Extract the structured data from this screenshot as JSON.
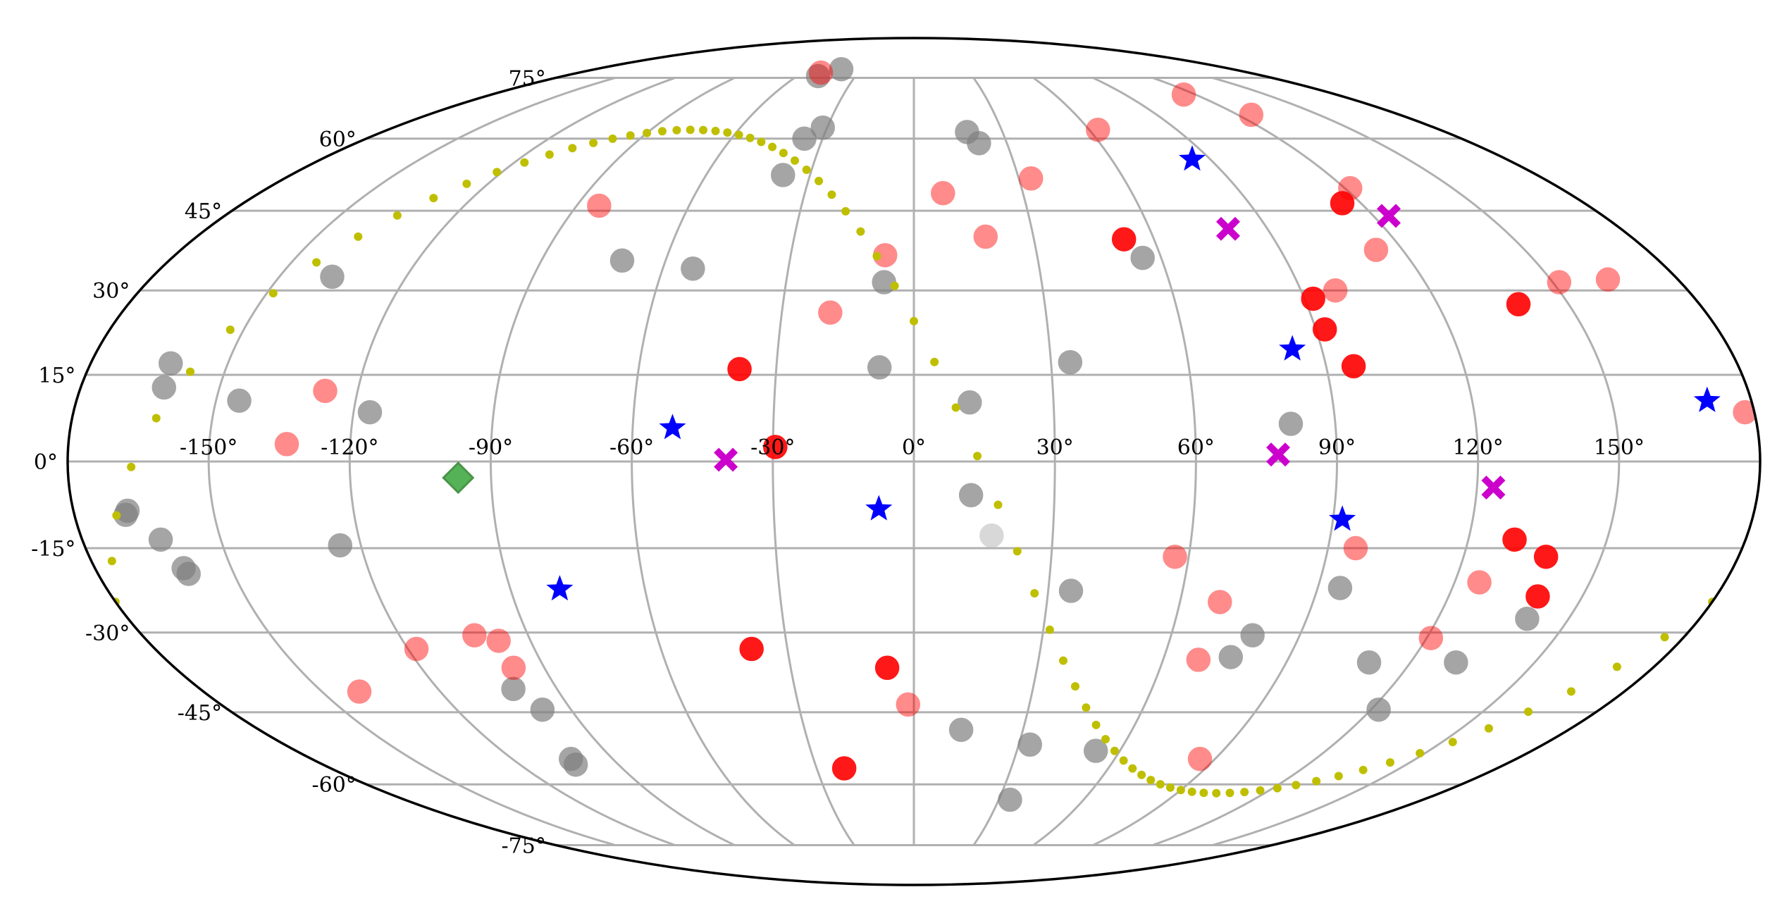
{
  "chart_data": {
    "type": "scatter",
    "projection": "mollweide",
    "title": "",
    "xlabel": "",
    "ylabel": "",
    "xlim": [
      -180,
      180
    ],
    "ylim": [
      -90,
      90
    ],
    "grid": true,
    "lon_ticks": [
      -150,
      -120,
      -90,
      -60,
      -30,
      0,
      30,
      60,
      90,
      120,
      150
    ],
    "lat_ticks": [
      -75,
      -60,
      -45,
      -30,
      -15,
      0,
      15,
      30,
      45,
      60,
      75
    ],
    "lon_tick_labels": [
      "-150°",
      "-120°",
      "-90°",
      "-60°",
      "-30°",
      "0°",
      "30°",
      "60°",
      "90°",
      "120°",
      "150°"
    ],
    "lat_tick_labels": [
      "-75°",
      "-60°",
      "-45°",
      "-30°",
      "-15°",
      "0°",
      "15°",
      "30°",
      "45°",
      "60°",
      "75°"
    ],
    "colors": {
      "grid": "#b0b0b0",
      "outline": "#000000",
      "gray": "#808080",
      "gray_light": "#c8c8c8",
      "red": "#ff0000",
      "blue": "#0000ff",
      "magenta": "#cc00cc",
      "green": "#2ca02c",
      "olive": "#bfbf00"
    },
    "series": [
      {
        "marker": "circle",
        "color": "#808080",
        "alpha": 0.7,
        "points": [
          [
            -168.4,
            -8.5
          ],
          [
            -163,
            -13.5
          ],
          [
            -160.5,
            -18.5
          ],
          [
            -160,
            -19.5
          ],
          [
            -162,
            12.8
          ],
          [
            -162.5,
            17
          ],
          [
            -145,
            10.5
          ],
          [
            -137.5,
            32.5
          ],
          [
            -124.5,
            -14.5
          ],
          [
            -116.5,
            8.5
          ],
          [
            -101,
            -40.5
          ],
          [
            -97.5,
            -44.5
          ],
          [
            -102.5,
            -54.5
          ],
          [
            -103,
            -55.7
          ],
          [
            -70.5,
            35.5
          ],
          [
            -52.8,
            34
          ],
          [
            -49.2,
            75.5
          ],
          [
            -36,
            60
          ],
          [
            -31.5,
            62.5
          ],
          [
            -41,
            77.5
          ],
          [
            -37.8,
            52.2
          ],
          [
            -7,
            31.5
          ],
          [
            -7.5,
            16.3
          ],
          [
            12,
            10.2
          ],
          [
            12.2,
            -5.8
          ],
          [
            13,
            -48.5
          ],
          [
            18,
            61.5
          ],
          [
            21,
            59
          ],
          [
            34.2,
            17.2
          ],
          [
            35.1,
            -22.5
          ],
          [
            33.2,
            -51.5
          ],
          [
            34,
            -63.5
          ],
          [
            55.5,
            36
          ],
          [
            53,
            -52.8
          ],
          [
            80.5,
            6.5
          ],
          [
            79,
            -30.5
          ],
          [
            76,
            -34.5
          ],
          [
            95,
            -22
          ],
          [
            110,
            -35.5
          ],
          [
            122,
            -44.5
          ],
          [
            131,
            -35.5
          ],
          [
            140.5,
            -27.5
          ],
          [
            -169,
            -9.2
          ]
        ]
      },
      {
        "marker": "circle",
        "color": "#c8c8c8",
        "alpha": 0.7,
        "points": [
          [
            16.8,
            -12.8
          ]
        ]
      },
      {
        "marker": "circle",
        "color": "#ff0000",
        "alpha": 0.9,
        "points": [
          [
            -38,
            16
          ],
          [
            -29.5,
            2.5
          ],
          [
            -38.5,
            -33
          ],
          [
            -6.5,
            -36.5
          ],
          [
            -21.5,
            -56.5
          ],
          [
            52.5,
            39.5
          ],
          [
            92,
            28.5
          ],
          [
            92,
            23
          ],
          [
            96,
            16.5
          ],
          [
            115,
            46.5
          ],
          [
            138.5,
            27.5
          ],
          [
            130,
            -13.5
          ],
          [
            138,
            -16.5
          ],
          [
            140,
            -23.5
          ]
        ]
      },
      {
        "marker": "circle",
        "color": "#ff0000",
        "alpha": 0.45,
        "points": [
          [
            -133.5,
            3
          ],
          [
            -127,
            12.2
          ],
          [
            -118,
            -33
          ],
          [
            -140.5,
            -41
          ],
          [
            -102.5,
            -30.5
          ],
          [
            -97.5,
            -31.5
          ],
          [
            -97.5,
            -36.5
          ],
          [
            -84,
            46
          ],
          [
            -19,
            26
          ],
          [
            -7,
            36.5
          ],
          [
            8,
            48.5
          ],
          [
            18,
            40
          ],
          [
            33.5,
            51.5
          ],
          [
            63,
            62
          ],
          [
            57,
            -16.5
          ],
          [
            69,
            -24.5
          ],
          [
            68.5,
            -35
          ],
          [
            -1.5,
            -43.5
          ],
          [
            115,
            70.5
          ],
          [
            98,
            30
          ],
          [
            113.5,
            37.5
          ],
          [
            121.5,
            49.5
          ],
          [
            125,
            65.5
          ],
          [
            151.5,
            31.5
          ],
          [
            163.5,
            32
          ],
          [
            178,
            8.5
          ],
          [
            96,
            -15
          ],
          [
            125.5,
            -21
          ],
          [
            121,
            -31
          ],
          [
            85.5,
            -54.5
          ],
          [
            -50,
            76.5
          ]
        ]
      },
      {
        "marker": "star",
        "color": "#0000ff",
        "alpha": 1,
        "points": [
          [
            -51.5,
            5.8
          ],
          [
            -79,
            -22.2
          ],
          [
            -7.5,
            -8.2
          ],
          [
            84.5,
            55.5
          ],
          [
            83.5,
            19.5
          ],
          [
            92,
            -10
          ],
          [
            170.5,
            10.5
          ]
        ]
      },
      {
        "marker": "x",
        "color": "#cc00cc",
        "alpha": 1,
        "points": [
          [
            -40,
            0.3
          ],
          [
            77.5,
            1.2
          ],
          [
            80,
            41.5
          ],
          [
            124,
            44
          ],
          [
            123.5,
            -4.5
          ]
        ]
      },
      {
        "marker": "diamond",
        "color": "#2ca02c",
        "alpha": 0.8,
        "points": [
          [
            -97,
            -2.8
          ]
        ]
      },
      {
        "marker": "dot",
        "color": "#bfbf00",
        "alpha": 1,
        "curve": "great_circle",
        "points": [
          [
            -180,
            -9
          ],
          [
            -90,
            53
          ],
          [
            0,
            15
          ],
          [
            90,
            -53
          ]
        ]
      }
    ]
  }
}
